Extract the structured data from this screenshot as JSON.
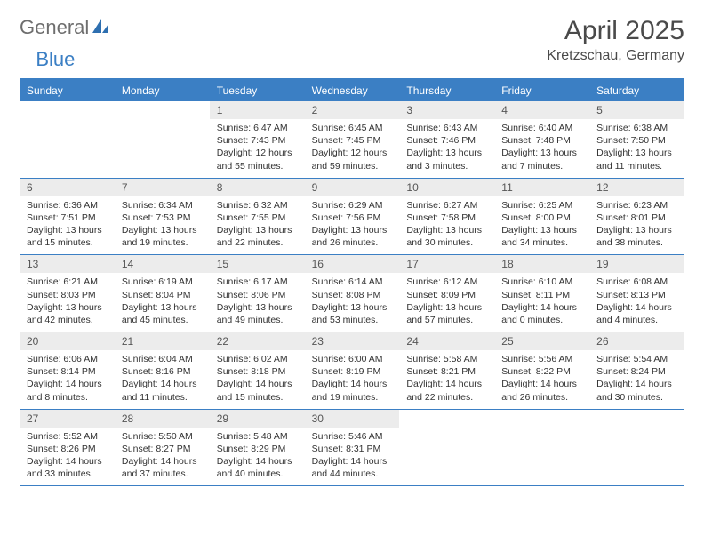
{
  "logo": {
    "text_general": "General",
    "text_blue": "Blue"
  },
  "title": "April 2025",
  "location": "Kretzschau, Germany",
  "colors": {
    "accent": "#3b7fc4",
    "header_text": "#4a4a4a",
    "daynum_bg": "#ececec",
    "body_text": "#333333",
    "logo_gray": "#6e6e6e"
  },
  "weekdays": [
    "Sunday",
    "Monday",
    "Tuesday",
    "Wednesday",
    "Thursday",
    "Friday",
    "Saturday"
  ],
  "weeks": [
    [
      {
        "day": "",
        "sunrise": "",
        "sunset": "",
        "daylight": ""
      },
      {
        "day": "",
        "sunrise": "",
        "sunset": "",
        "daylight": ""
      },
      {
        "day": "1",
        "sunrise": "Sunrise: 6:47 AM",
        "sunset": "Sunset: 7:43 PM",
        "daylight": "Daylight: 12 hours and 55 minutes."
      },
      {
        "day": "2",
        "sunrise": "Sunrise: 6:45 AM",
        "sunset": "Sunset: 7:45 PM",
        "daylight": "Daylight: 12 hours and 59 minutes."
      },
      {
        "day": "3",
        "sunrise": "Sunrise: 6:43 AM",
        "sunset": "Sunset: 7:46 PM",
        "daylight": "Daylight: 13 hours and 3 minutes."
      },
      {
        "day": "4",
        "sunrise": "Sunrise: 6:40 AM",
        "sunset": "Sunset: 7:48 PM",
        "daylight": "Daylight: 13 hours and 7 minutes."
      },
      {
        "day": "5",
        "sunrise": "Sunrise: 6:38 AM",
        "sunset": "Sunset: 7:50 PM",
        "daylight": "Daylight: 13 hours and 11 minutes."
      }
    ],
    [
      {
        "day": "6",
        "sunrise": "Sunrise: 6:36 AM",
        "sunset": "Sunset: 7:51 PM",
        "daylight": "Daylight: 13 hours and 15 minutes."
      },
      {
        "day": "7",
        "sunrise": "Sunrise: 6:34 AM",
        "sunset": "Sunset: 7:53 PM",
        "daylight": "Daylight: 13 hours and 19 minutes."
      },
      {
        "day": "8",
        "sunrise": "Sunrise: 6:32 AM",
        "sunset": "Sunset: 7:55 PM",
        "daylight": "Daylight: 13 hours and 22 minutes."
      },
      {
        "day": "9",
        "sunrise": "Sunrise: 6:29 AM",
        "sunset": "Sunset: 7:56 PM",
        "daylight": "Daylight: 13 hours and 26 minutes."
      },
      {
        "day": "10",
        "sunrise": "Sunrise: 6:27 AM",
        "sunset": "Sunset: 7:58 PM",
        "daylight": "Daylight: 13 hours and 30 minutes."
      },
      {
        "day": "11",
        "sunrise": "Sunrise: 6:25 AM",
        "sunset": "Sunset: 8:00 PM",
        "daylight": "Daylight: 13 hours and 34 minutes."
      },
      {
        "day": "12",
        "sunrise": "Sunrise: 6:23 AM",
        "sunset": "Sunset: 8:01 PM",
        "daylight": "Daylight: 13 hours and 38 minutes."
      }
    ],
    [
      {
        "day": "13",
        "sunrise": "Sunrise: 6:21 AM",
        "sunset": "Sunset: 8:03 PM",
        "daylight": "Daylight: 13 hours and 42 minutes."
      },
      {
        "day": "14",
        "sunrise": "Sunrise: 6:19 AM",
        "sunset": "Sunset: 8:04 PM",
        "daylight": "Daylight: 13 hours and 45 minutes."
      },
      {
        "day": "15",
        "sunrise": "Sunrise: 6:17 AM",
        "sunset": "Sunset: 8:06 PM",
        "daylight": "Daylight: 13 hours and 49 minutes."
      },
      {
        "day": "16",
        "sunrise": "Sunrise: 6:14 AM",
        "sunset": "Sunset: 8:08 PM",
        "daylight": "Daylight: 13 hours and 53 minutes."
      },
      {
        "day": "17",
        "sunrise": "Sunrise: 6:12 AM",
        "sunset": "Sunset: 8:09 PM",
        "daylight": "Daylight: 13 hours and 57 minutes."
      },
      {
        "day": "18",
        "sunrise": "Sunrise: 6:10 AM",
        "sunset": "Sunset: 8:11 PM",
        "daylight": "Daylight: 14 hours and 0 minutes."
      },
      {
        "day": "19",
        "sunrise": "Sunrise: 6:08 AM",
        "sunset": "Sunset: 8:13 PM",
        "daylight": "Daylight: 14 hours and 4 minutes."
      }
    ],
    [
      {
        "day": "20",
        "sunrise": "Sunrise: 6:06 AM",
        "sunset": "Sunset: 8:14 PM",
        "daylight": "Daylight: 14 hours and 8 minutes."
      },
      {
        "day": "21",
        "sunrise": "Sunrise: 6:04 AM",
        "sunset": "Sunset: 8:16 PM",
        "daylight": "Daylight: 14 hours and 11 minutes."
      },
      {
        "day": "22",
        "sunrise": "Sunrise: 6:02 AM",
        "sunset": "Sunset: 8:18 PM",
        "daylight": "Daylight: 14 hours and 15 minutes."
      },
      {
        "day": "23",
        "sunrise": "Sunrise: 6:00 AM",
        "sunset": "Sunset: 8:19 PM",
        "daylight": "Daylight: 14 hours and 19 minutes."
      },
      {
        "day": "24",
        "sunrise": "Sunrise: 5:58 AM",
        "sunset": "Sunset: 8:21 PM",
        "daylight": "Daylight: 14 hours and 22 minutes."
      },
      {
        "day": "25",
        "sunrise": "Sunrise: 5:56 AM",
        "sunset": "Sunset: 8:22 PM",
        "daylight": "Daylight: 14 hours and 26 minutes."
      },
      {
        "day": "26",
        "sunrise": "Sunrise: 5:54 AM",
        "sunset": "Sunset: 8:24 PM",
        "daylight": "Daylight: 14 hours and 30 minutes."
      }
    ],
    [
      {
        "day": "27",
        "sunrise": "Sunrise: 5:52 AM",
        "sunset": "Sunset: 8:26 PM",
        "daylight": "Daylight: 14 hours and 33 minutes."
      },
      {
        "day": "28",
        "sunrise": "Sunrise: 5:50 AM",
        "sunset": "Sunset: 8:27 PM",
        "daylight": "Daylight: 14 hours and 37 minutes."
      },
      {
        "day": "29",
        "sunrise": "Sunrise: 5:48 AM",
        "sunset": "Sunset: 8:29 PM",
        "daylight": "Daylight: 14 hours and 40 minutes."
      },
      {
        "day": "30",
        "sunrise": "Sunrise: 5:46 AM",
        "sunset": "Sunset: 8:31 PM",
        "daylight": "Daylight: 14 hours and 44 minutes."
      },
      {
        "day": "",
        "sunrise": "",
        "sunset": "",
        "daylight": ""
      },
      {
        "day": "",
        "sunrise": "",
        "sunset": "",
        "daylight": ""
      },
      {
        "day": "",
        "sunrise": "",
        "sunset": "",
        "daylight": ""
      }
    ]
  ]
}
